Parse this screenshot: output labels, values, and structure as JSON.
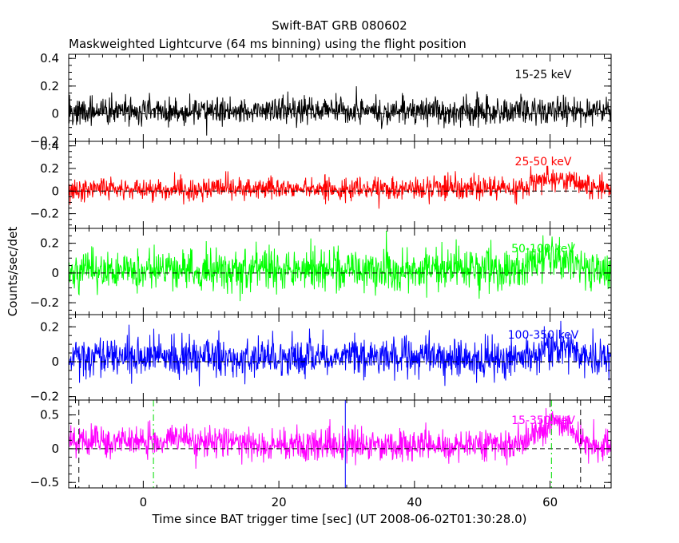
{
  "chart_data": {
    "type": "line",
    "title": "Swift-BAT GRB 080602",
    "subtitle": "Maskweighted Lightcurve (64 ms binning) using the flight position",
    "xlabel": "Time since BAT trigger time [sec] (UT 2008-06-02T01:30:28.0)",
    "ylabel": "Counts/sec/det",
    "xlim": [
      -11,
      69
    ],
    "xticks": [
      0,
      20,
      40,
      60
    ],
    "xtick_labels": [
      "0",
      "20",
      "40",
      "60"
    ],
    "grid": false,
    "vlines": [
      {
        "x": -9.5,
        "style": "dashed",
        "color": "#000000"
      },
      {
        "x": 1.5,
        "style": "dashdot",
        "color": "#00dd00"
      },
      {
        "x": 29.8,
        "style": "solid",
        "color": "#0000ff"
      },
      {
        "x": 60.2,
        "style": "dashdot",
        "color": "#00dd00"
      },
      {
        "x": 64.5,
        "style": "dashed",
        "color": "#000000"
      }
    ],
    "panels": [
      {
        "band": "15-25 keV",
        "color": "#000000",
        "ylim": [
          -0.2,
          0.43
        ],
        "yticks": [
          -0.2,
          0,
          0.2,
          0.4
        ],
        "ytick_labels": [
          "−0.2",
          "0",
          "0.2",
          "0.4"
        ],
        "noise": 0.05,
        "profile": [
          [
            -11,
            0.02
          ],
          [
            68,
            0.02
          ],
          [
            69,
            0.02
          ]
        ]
      },
      {
        "band": "25-50 keV",
        "color": "#ff0000",
        "ylim": [
          -0.33,
          0.44
        ],
        "yticks": [
          -0.2,
          0,
          0.2,
          0.4
        ],
        "ytick_labels": [
          "−0.2",
          "0",
          "0.2",
          "0.4"
        ],
        "noise": 0.05,
        "profile": [
          [
            -11,
            0.02
          ],
          [
            55,
            0.02
          ],
          [
            57,
            0.06
          ],
          [
            59,
            0.1
          ],
          [
            60.5,
            0.12
          ],
          [
            62,
            0.09
          ],
          [
            63,
            0.1
          ],
          [
            64.5,
            0.06
          ],
          [
            66,
            0.03
          ],
          [
            69,
            0.02
          ]
        ]
      },
      {
        "band": "50-100 keV",
        "color": "#00ff00",
        "ylim": [
          -0.28,
          0.3
        ],
        "yticks": [
          -0.2,
          0,
          0.2
        ],
        "ytick_labels": [
          "−0.2",
          "0",
          "0.2"
        ],
        "noise": 0.07,
        "profile": [
          [
            -11,
            0.02
          ],
          [
            55,
            0.02
          ],
          [
            57,
            0.06
          ],
          [
            59.5,
            0.1
          ],
          [
            60.5,
            0.14
          ],
          [
            62,
            0.08
          ],
          [
            63,
            0.1
          ],
          [
            64.5,
            0.05
          ],
          [
            66,
            0.02
          ],
          [
            69,
            0.02
          ]
        ]
      },
      {
        "band": "100-350 keV",
        "color": "#0000ff",
        "ylim": [
          -0.22,
          0.27
        ],
        "yticks": [
          -0.2,
          0,
          0.2
        ],
        "ytick_labels": [
          "−0.2",
          "0",
          "0.2"
        ],
        "noise": 0.055,
        "profile": [
          [
            -11,
            0.03
          ],
          [
            56,
            0.02
          ],
          [
            58,
            0.05
          ],
          [
            60,
            0.08
          ],
          [
            61,
            0.1
          ],
          [
            62.5,
            0.06
          ],
          [
            64,
            0.05
          ],
          [
            66,
            0.02
          ],
          [
            69,
            0.02
          ]
        ]
      },
      {
        "band": "15-350 keV",
        "color": "#ff00ff",
        "ylim": [
          -0.58,
          0.72
        ],
        "yticks": [
          -0.5,
          0,
          0.5
        ],
        "ytick_labels": [
          "−0.5",
          "0",
          "0.5"
        ],
        "noise": 0.12,
        "profile": [
          [
            -11,
            0.12
          ],
          [
            0,
            0.1
          ],
          [
            3,
            0.15
          ],
          [
            20,
            0.06
          ],
          [
            40,
            0.04
          ],
          [
            55,
            0.05
          ],
          [
            57,
            0.12
          ],
          [
            59,
            0.28
          ],
          [
            60.5,
            0.4
          ],
          [
            61.5,
            0.32
          ],
          [
            63,
            0.3
          ],
          [
            64,
            0.2
          ],
          [
            65.5,
            0.08
          ],
          [
            69,
            0.05
          ]
        ]
      }
    ]
  }
}
